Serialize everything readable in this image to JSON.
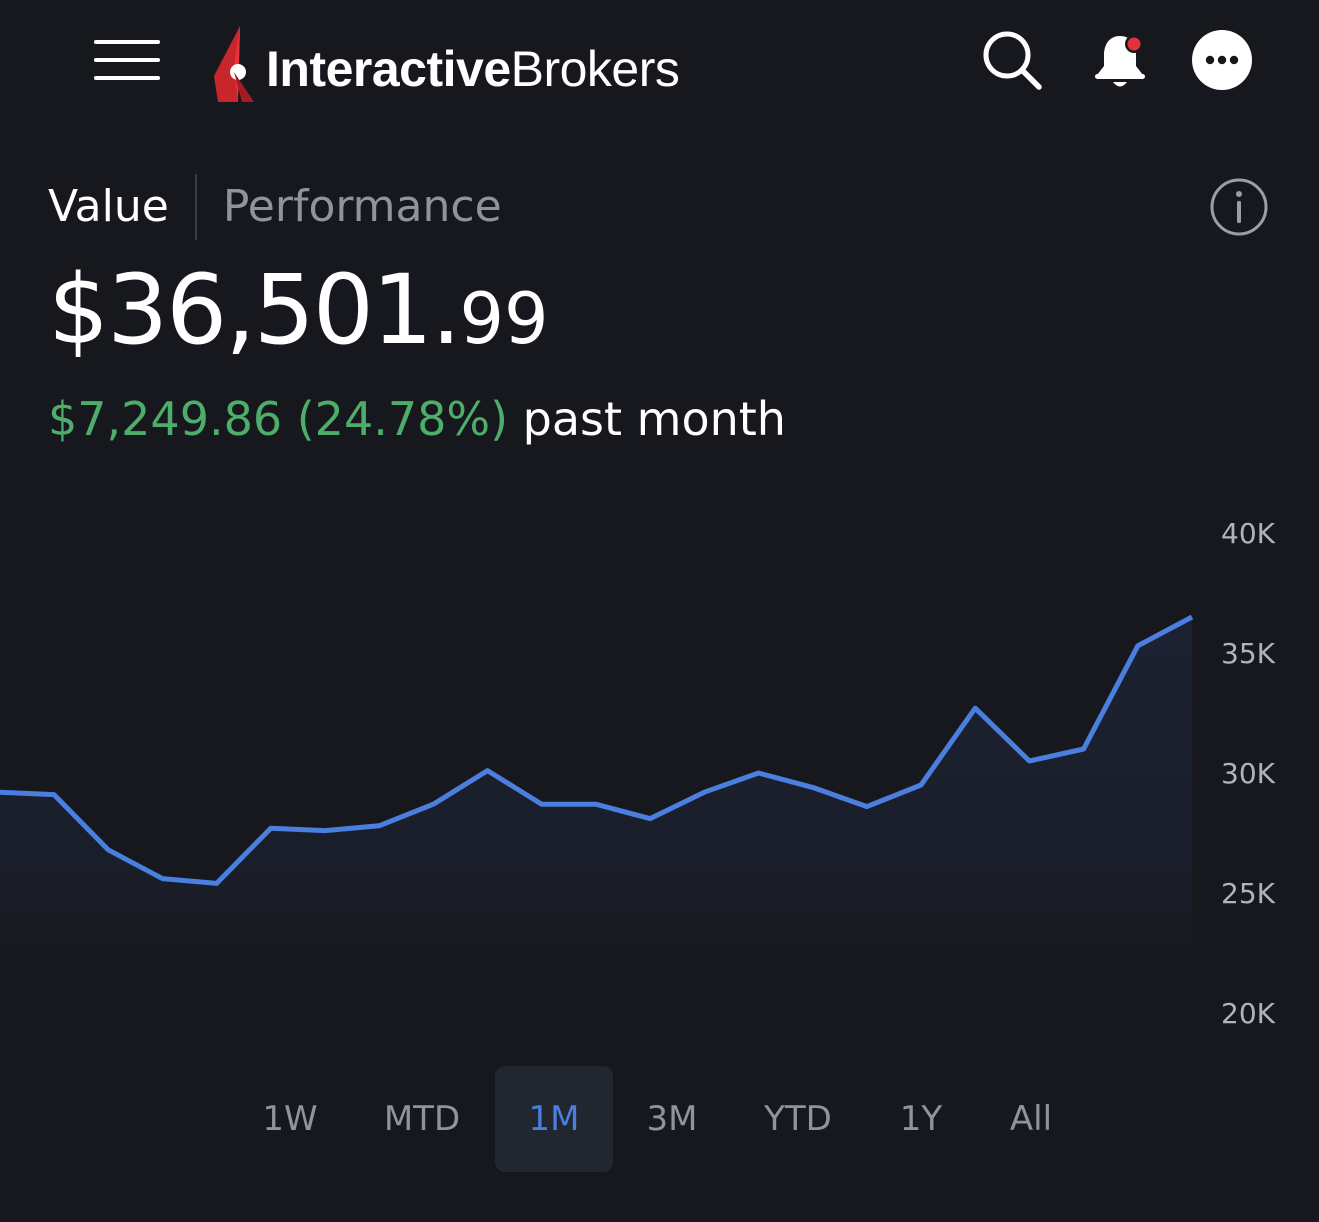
{
  "header": {
    "brand_bold": "Interactive",
    "brand_regular": "Brokers",
    "icons": {
      "menu": "hamburger-menu-icon",
      "search": "search-icon",
      "notifications": "bell-icon",
      "more": "more-dots-icon"
    },
    "notification_dot_color": "#e0333f"
  },
  "tabs": {
    "value_label": "Value",
    "performance_label": "Performance",
    "active": "Value"
  },
  "summary": {
    "value_main": "$36,501.",
    "value_cents": "99",
    "change_amount": "$7,249.86 (24.78%)",
    "change_period": "past month",
    "positive_color": "#4cae6a"
  },
  "chart_data": {
    "type": "area",
    "y_ticks": [
      "40K",
      "35K",
      "30K",
      "25K",
      "20K"
    ],
    "ylim": [
      20000,
      40000
    ],
    "line_color": "#4a7fe0",
    "series": [
      {
        "values": [
          29200,
          29100,
          26800,
          25600,
          25400,
          27700,
          27600,
          27800,
          28700,
          30100,
          28700,
          28700,
          28100,
          29200,
          30000,
          29400,
          28600,
          29500,
          32700,
          30500,
          31000,
          35300,
          36500
        ]
      }
    ]
  },
  "ranges": {
    "items": [
      "1W",
      "MTD",
      "1M",
      "3M",
      "YTD",
      "1Y",
      "All"
    ],
    "active": "1M"
  }
}
